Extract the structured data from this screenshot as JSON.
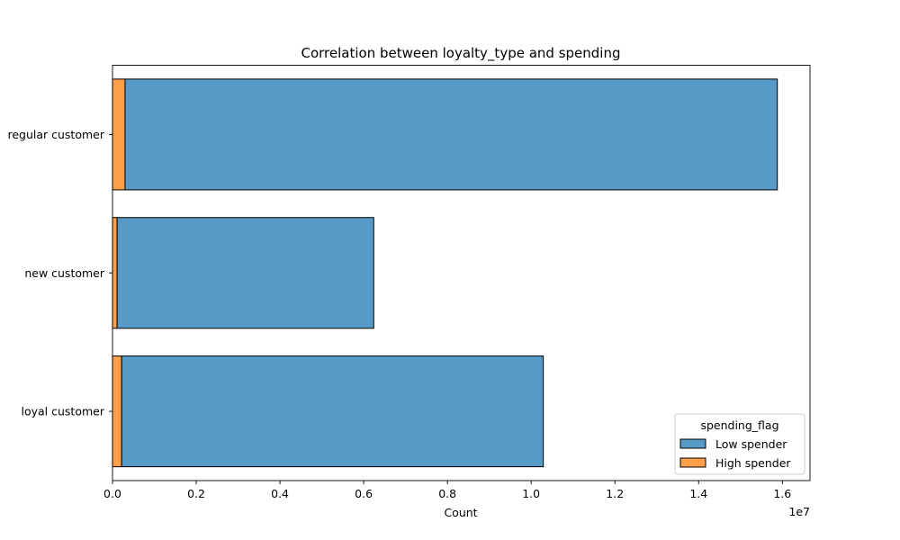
{
  "chart_data": {
    "type": "bar",
    "orientation": "horizontal",
    "stacked": true,
    "title": "Correlation between loyalty_type and spending",
    "xlabel": "Count",
    "ylabel": "",
    "x_scale_label": "1e7",
    "xlim": [
      0,
      16660000
    ],
    "x_ticks": [
      0,
      2000000,
      4000000,
      6000000,
      8000000,
      10000000,
      12000000,
      14000000,
      16000000
    ],
    "x_tick_labels": [
      "0.0",
      "0.2",
      "0.4",
      "0.6",
      "0.8",
      "1.0",
      "1.2",
      "1.4",
      "1.6"
    ],
    "categories": [
      "regular customer",
      "new customer",
      "loyal customer"
    ],
    "series": [
      {
        "name": "High spender",
        "color": "#ff9f4a",
        "values": [
          300000,
          110000,
          220000
        ]
      },
      {
        "name": "Low spender",
        "color": "#5799c7",
        "values": [
          15580000,
          6130000,
          10070000
        ]
      }
    ],
    "legend": {
      "title": "spending_flag",
      "position": "lower right",
      "entries": [
        "Low spender",
        "High spender"
      ]
    },
    "grid": false
  }
}
